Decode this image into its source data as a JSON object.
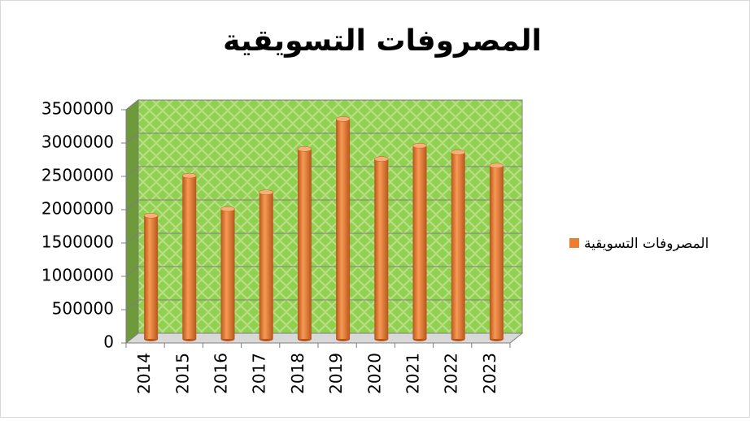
{
  "chart_data": {
    "type": "bar3d",
    "title": "المصروفات التسويقية",
    "categories": [
      "2014",
      "2015",
      "2016",
      "2017",
      "2018",
      "2019",
      "2020",
      "2021",
      "2022",
      "2023"
    ],
    "series": [
      {
        "name": "المصروفات التسويقية",
        "color": "#ed7d31",
        "values": [
          1850000,
          2450000,
          1950000,
          2200000,
          2850000,
          3300000,
          2700000,
          2900000,
          2800000,
          2600000
        ]
      }
    ],
    "ylim": [
      0,
      3500000
    ],
    "yticks": [
      0,
      500000,
      1000000,
      1500000,
      2000000,
      2500000,
      3000000,
      3500000
    ],
    "grid": true,
    "legend": "right"
  }
}
